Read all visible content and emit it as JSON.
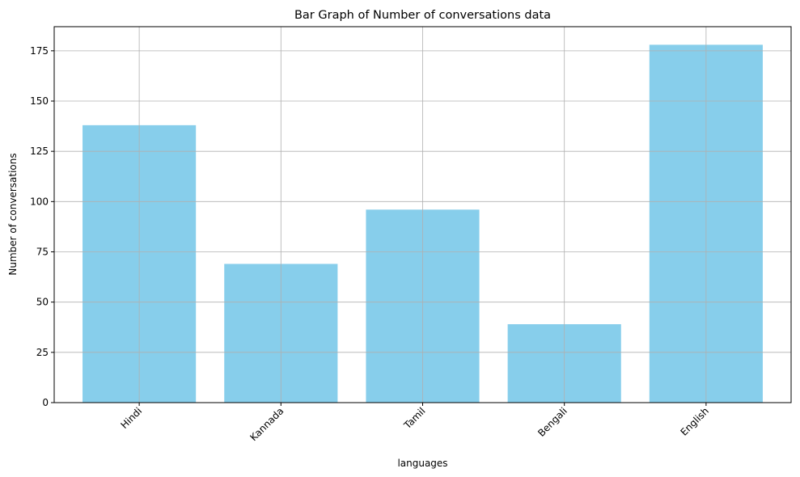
{
  "chart_data": {
    "type": "bar",
    "title": "Bar Graph of Number of conversations data",
    "xlabel": "languages",
    "ylabel": "Number of conversations",
    "categories": [
      "Hindi",
      "Kannada",
      "Tamil",
      "Bengali",
      "English"
    ],
    "values": [
      138,
      69,
      96,
      39,
      178
    ],
    "ylim": [
      0,
      187
    ],
    "yticks": [
      0,
      25,
      50,
      75,
      100,
      125,
      150,
      175
    ],
    "x_tick_rotation": 45,
    "grid": true,
    "legend": "none",
    "bar_color": "#87CEEB",
    "grid_color": "#b0b0b0"
  }
}
